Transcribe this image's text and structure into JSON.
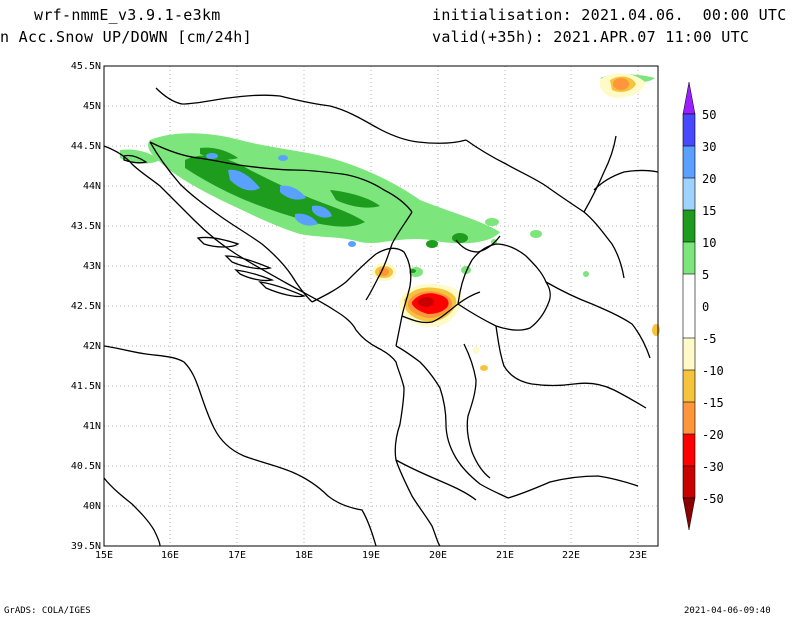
{
  "header": {
    "model": "wrf-nmmE_v3.9.1-e3km",
    "variable": "n Acc.Snow UP/DOWN [cm/24h]",
    "init": "initialisation: 2021.04.06.  00:00 UTC",
    "valid": "valid(+35h): 2021.APR.07 11:00 UTC"
  },
  "footer": {
    "left": "GrADS: COLA/IGES",
    "right": "2021-04-06-09:40"
  },
  "map": {
    "lon_ticks": [
      "15E",
      "16E",
      "17E",
      "18E",
      "19E",
      "20E",
      "21E",
      "22E",
      "23E"
    ],
    "lat_ticks": [
      "39.5N",
      "40N",
      "40.5N",
      "41N",
      "41.5N",
      "42N",
      "42.5N",
      "43N",
      "43.5N",
      "44N",
      "44.5N",
      "45N",
      "45.5N"
    ],
    "lon_range": [
      15,
      23.3
    ],
    "lat_range": [
      39.5,
      45.5
    ]
  },
  "colorbar": {
    "labels": [
      "50",
      "30",
      "20",
      "15",
      "10",
      "5",
      "0",
      "-5",
      "-10",
      "-15",
      "-20",
      "-30",
      "-50"
    ],
    "colors": [
      "#9a1eff",
      "#4848ff",
      "#5aa0ff",
      "#a0d2ff",
      "#1e9c1e",
      "#7ce67c",
      "#ffffff",
      "#fffac8",
      "#f5c33c",
      "#ff963c",
      "#ff0000",
      "#c80000",
      "#8c0000"
    ]
  }
}
